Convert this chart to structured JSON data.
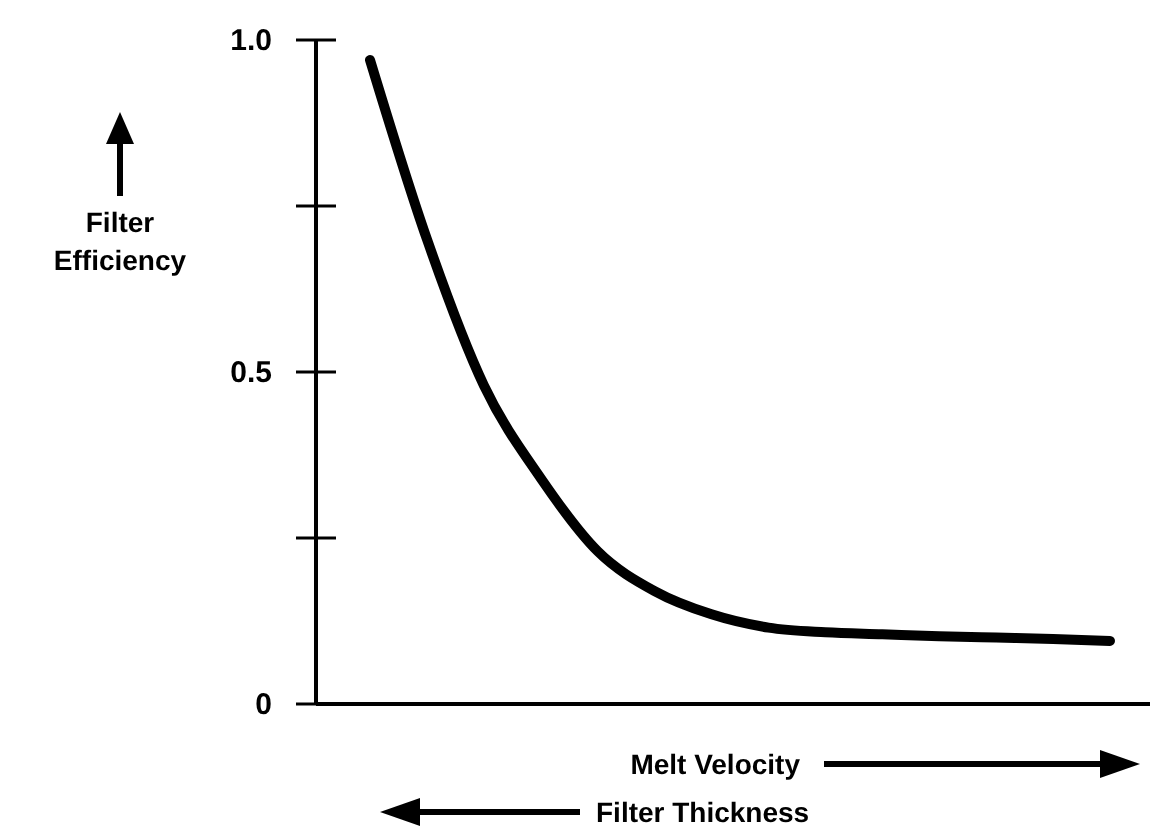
{
  "chart_data": {
    "type": "line",
    "xlabel": "Melt Velocity",
    "ylabel": "Filter Efficiency",
    "annotations": [
      "Filter Thickness"
    ],
    "categories": [
      null,
      null,
      null,
      null,
      null,
      null,
      null,
      null,
      null,
      null,
      null,
      null,
      null,
      null
    ],
    "series": [
      {
        "color": "#000000",
        "values": [
          0.97,
          0.7,
          0.48,
          0.34,
          0.23,
          0.17,
          0.135,
          0.115,
          0.108,
          0.105,
          0.102,
          0.1,
          0.098,
          0.095
        ]
      }
    ],
    "ylim": [
      0,
      1.0
    ],
    "yticks": [
      0,
      {
        "value": 0.25,
        "label": null
      },
      0.5,
      {
        "value": 0.75,
        "label": null
      },
      {
        "value": 1.0,
        "label": "1.0"
      }
    ],
    "grid": false,
    "marker": "none",
    "line_style": "solid"
  }
}
